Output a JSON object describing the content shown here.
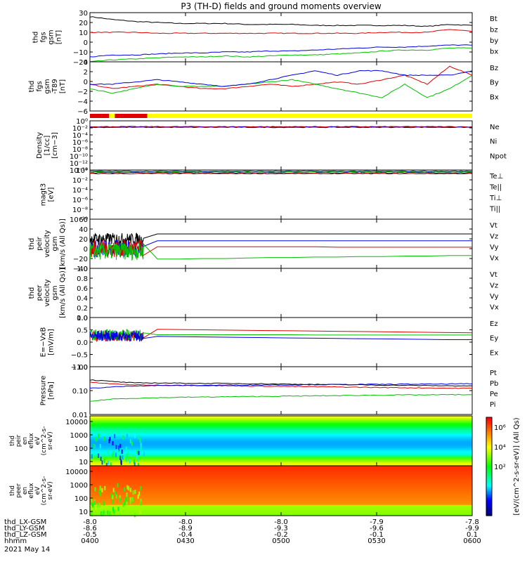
{
  "title": "P3 (TH-D) fields and ground moments overview",
  "chart_data": {
    "type": "line",
    "x_ticks": [
      "0400",
      "0430",
      "0500",
      "0530",
      "0600"
    ],
    "x_range": [
      "0400",
      "0600"
    ],
    "date_label": "2021 May 14",
    "ephemeris": [
      {
        "label": "thd_LX-GSM",
        "values": [
          "-8.0",
          "-8.0",
          "-8.0",
          "-7.9",
          "-7.8"
        ]
      },
      {
        "label": "thd_LY-GSM",
        "values": [
          "-8.6",
          "-8.9",
          "-9.3",
          "-9.6",
          "-9.9"
        ]
      },
      {
        "label": "thd_LZ-GSM",
        "values": [
          "-0.5",
          "-0.4",
          "-0.2",
          "-0.1",
          "0.1"
        ]
      },
      {
        "label": "hhmm",
        "values": [
          "0400",
          "0430",
          "0500",
          "0530",
          "0600"
        ]
      }
    ],
    "panels": [
      {
        "id": "fgs",
        "ylabel": [
          "thd",
          "fgs",
          "gsm",
          "[nT]"
        ],
        "yrange": [
          -20,
          30
        ],
        "yticks": [
          "30",
          "20",
          "10",
          "0",
          "−10",
          "−20"
        ],
        "legend": [
          {
            "name": "Bt",
            "color": "#000000"
          },
          {
            "name": "bz",
            "color": "#e00000"
          },
          {
            "name": "by",
            "color": "#00c000"
          },
          {
            "name": "bx",
            "color": "#0000e0"
          }
        ],
        "series": [
          {
            "name": "Bt",
            "color": "#000000",
            "y": [
              26,
              23,
              21,
              20,
              19,
              19,
              19,
              18,
              18,
              18,
              17,
              17,
              17,
              17,
              17,
              16,
              18,
              17
            ]
          },
          {
            "name": "bz",
            "color": "#e00000",
            "y": [
              10,
              10,
              10,
              9,
              9,
              9,
              9,
              9,
              9,
              9,
              9,
              9,
              9,
              10,
              10,
              10,
              13,
              11
            ]
          },
          {
            "name": "by",
            "color": "#00c000",
            "y": [
              -20,
              -18,
              -17,
              -16,
              -15,
              -15,
              -14,
              -15,
              -14,
              -13,
              -13,
              -12,
              -11,
              -9,
              -8,
              -8,
              -6,
              -6
            ]
          },
          {
            "name": "bx",
            "color": "#0000e0",
            "y": [
              -15,
              -13,
              -13,
              -12,
              -11,
              -11,
              -10,
              -10,
              -9,
              -9,
              -8,
              -7,
              -6,
              -5,
              -5,
              -4,
              -3,
              -3
            ]
          }
        ]
      },
      {
        "id": "fgs_gse",
        "ylabel": [
          "thd",
          "fgs",
          "gsm",
          "-T89",
          "[nT]"
        ],
        "yrange": [
          -7,
          4
        ],
        "yticks": [
          "4",
          "2",
          "0",
          "−2",
          "−4",
          "−6"
        ],
        "legend": [
          {
            "name": "Bz",
            "color": "#e00000"
          },
          {
            "name": "By",
            "color": "#00c000"
          },
          {
            "name": "Bx",
            "color": "#0000e0"
          }
        ],
        "series": [
          {
            "name": "Bz",
            "color": "#e00000",
            "y": [
              -1,
              -2,
              -1.5,
              -1,
              -1.5,
              -2,
              -2,
              -1.5,
              -1,
              -1.5,
              -1,
              -0.5,
              -1,
              0,
              1,
              -1,
              3,
              1
            ]
          },
          {
            "name": "By",
            "color": "#00c000",
            "y": [
              -2,
              -3,
              -2,
              -1,
              -1.5,
              -1.5,
              -1.5,
              -1,
              -0.5,
              0,
              -1,
              -2,
              -3,
              -4,
              -1,
              -4,
              -2,
              1
            ]
          },
          {
            "name": "Bx",
            "color": "#0000e0",
            "y": [
              -1,
              -1,
              -0.5,
              0,
              -0.5,
              -1,
              -1.5,
              -1,
              0,
              1,
              2,
              1,
              2,
              2,
              1,
              1,
              1,
              2
            ]
          }
        ]
      },
      {
        "id": "density",
        "ylabel": [
          "Density",
          "[1/cc]",
          "[cm−3]"
        ],
        "yrange": [
          -14,
          2
        ],
        "yticks": [
          "10⁰",
          "10⁻²",
          "10⁻⁴",
          "10⁻⁶",
          "10⁻⁸",
          "10⁻¹⁰",
          "10⁻¹²",
          "10⁻¹⁴"
        ],
        "legend": [
          {
            "name": "Ne",
            "color": "#e00000"
          },
          {
            "name": "Ni",
            "color": "#000000"
          },
          {
            "name": "Npot",
            "color": "#0000e0"
          }
        ],
        "series": [
          {
            "name": "Ni",
            "color": "#000000",
            "y": [
              0,
              0,
              0,
              0,
              0,
              0,
              0,
              0,
              0,
              0,
              0,
              0,
              0,
              0,
              0,
              0,
              0,
              0
            ]
          },
          {
            "name": "Ne",
            "color": "#e00000",
            "y": [
              0.1,
              0.1,
              0.1,
              0.1,
              0.1,
              0.1,
              0.1,
              0.1,
              0.1,
              0.1,
              0.1,
              0.1,
              0.1,
              0.1,
              0.1,
              0.1,
              0.1,
              0.1
            ]
          },
          {
            "name": "Npot",
            "color": "#0000e0",
            "y": [
              -0.1,
              -0.1,
              -0.1,
              -0.1,
              -0.1,
              -0.1,
              -0.1,
              -0.1,
              -0.1,
              -0.1,
              -0.1,
              -0.1,
              -0.1,
              -0.1,
              -0.1,
              -0.1,
              -0.1,
              -0.1
            ]
          }
        ]
      },
      {
        "id": "temp",
        "ylabel": [
          "magt3",
          "[eV]"
        ],
        "yrange": [
          -10,
          2
        ],
        "yticks": [
          "10⁰",
          "10⁻²",
          "10⁻⁴",
          "10⁻⁶",
          "10⁻⁸",
          "10⁻¹⁰"
        ],
        "legend": [
          {
            "name": "Te⊥",
            "color": "#e00000"
          },
          {
            "name": "Te||",
            "color": "#000000"
          },
          {
            "name": "Ti⊥",
            "color": "#0000e0"
          },
          {
            "name": "Ti||",
            "color": "#00c000"
          }
        ],
        "series": [
          {
            "name": "Te||",
            "color": "#000000",
            "y": [
              1.3,
              1.3,
              1.3,
              1.3,
              1.3,
              1.3,
              1.3,
              1.3,
              1.3,
              1.3,
              1.3,
              1.3,
              1.3,
              1.3,
              1.3,
              1.3,
              1.3,
              1.3
            ]
          },
          {
            "name": "Ti||",
            "color": "#00c000",
            "y": [
              1.5,
              1.5,
              1.5,
              1.5,
              1.5,
              1.5,
              1.5,
              1.5,
              1.5,
              1.5,
              1.5,
              1.5,
              1.5,
              1.5,
              1.5,
              1.5,
              1.5,
              1.5
            ]
          },
          {
            "name": "Te⊥",
            "color": "#e00000",
            "y": [
              1.1,
              1.1,
              1.1,
              1.1,
              1.1,
              1.1,
              1.1,
              1.1,
              1.1,
              1.1,
              1.1,
              1.1,
              1.1,
              1.1,
              1.1,
              1.1,
              1.1,
              1.1
            ]
          },
          {
            "name": "Ti⊥",
            "color": "#0000e0",
            "y": [
              1.7,
              1.7,
              1.7,
              1.7,
              1.7,
              1.7,
              1.7,
              1.7,
              1.7,
              1.7,
              1.7,
              1.7,
              1.7,
              1.7,
              1.7,
              1.7,
              1.7,
              1.7
            ]
          }
        ]
      },
      {
        "id": "peir_vel",
        "ylabel": [
          "thd",
          "peir",
          "velocity",
          "gsm",
          "[km/s (All Qs)]"
        ],
        "yrange": [
          -40,
          60
        ],
        "yticks": [
          "60",
          "40",
          "20",
          "0",
          "−20",
          "−40"
        ],
        "legend": [
          {
            "name": "Vt",
            "color": "#000000"
          },
          {
            "name": "Vz",
            "color": "#e00000"
          },
          {
            "name": "Vy",
            "color": "#00c000"
          },
          {
            "name": "Vx",
            "color": "#0000e0"
          }
        ],
        "noisy_until": 0.14,
        "series": [
          {
            "name": "Vt",
            "color": "#000000",
            "y": [
              30,
              30,
              30,
              30,
              30,
              30,
              30,
              30,
              30,
              30,
              30,
              30,
              30,
              30,
              30,
              30,
              30,
              30
            ],
            "noise": [
              20,
              12
            ]
          },
          {
            "name": "Vx",
            "color": "#0000e0",
            "y": [
              16,
              16,
              16,
              16,
              16,
              16,
              16,
              16,
              16,
              16,
              16,
              16,
              16,
              16,
              16,
              16,
              16,
              16
            ],
            "noise": [
              0,
              18
            ]
          },
          {
            "name": "Vz",
            "color": "#e00000",
            "y": [
              4,
              4,
              4,
              4,
              4,
              4,
              4,
              4,
              4,
              4,
              4,
              3,
              3,
              3,
              3,
              3,
              3,
              3
            ],
            "noise": [
              0,
              18
            ]
          },
          {
            "name": "Vy",
            "color": "#00c000",
            "y": [
              -23,
              -22,
              -22,
              -21,
              -21,
              -20,
              -20,
              -19,
              -18,
              -18,
              -17,
              -17,
              -16,
              -16,
              -15,
              -15,
              -14,
              -14
            ],
            "noise": [
              -5,
              18
            ]
          }
        ]
      },
      {
        "id": "peer_vel",
        "ylabel": [
          "thd",
          "peer",
          "velocity",
          "gsm",
          "[km/s (All Qs)]"
        ],
        "yrange": [
          0,
          1
        ],
        "yticks": [
          "1.0",
          "0.8",
          "0.6",
          "0.4",
          "0.2",
          "0.0"
        ],
        "legend": [
          {
            "name": "Vt",
            "color": "#000000"
          },
          {
            "name": "Vz",
            "color": "#e00000"
          },
          {
            "name": "Vy",
            "color": "#00c000"
          },
          {
            "name": "Vx",
            "color": "#0000e0"
          }
        ],
        "series": []
      },
      {
        "id": "efield",
        "ylabel": [
          "E=−VxB",
          "[mV/m]"
        ],
        "yrange": [
          -1,
          1
        ],
        "yticks": [
          "1.0",
          "0.5",
          "0.0",
          "−0.5",
          "−1.0"
        ],
        "legend": [
          {
            "name": "Ez",
            "color": "#e00000"
          },
          {
            "name": "Ey",
            "color": "#00c000"
          },
          {
            "name": "Ex",
            "color": "#0000e0"
          }
        ],
        "noisy_until": 0.14,
        "series": [
          {
            "name": "Ez",
            "color": "#e00000",
            "y": [
              0.55,
              0.54,
              0.53,
              0.52,
              0.51,
              0.5,
              0.49,
              0.48,
              0.47,
              0.46,
              0.45,
              0.44,
              0.43,
              0.42,
              0.41,
              0.4,
              0.39,
              0.38
            ],
            "noise": [
              0.25,
              0.22
            ]
          },
          {
            "name": "Ey",
            "color": "#00c000",
            "y": [
              0.3,
              0.3,
              0.3,
              0.3,
              0.3,
              0.3,
              0.3,
              0.3,
              0.3,
              0.3,
              0.29,
              0.29,
              0.29,
              0.29,
              0.29,
              0.29,
              0.29,
              0.29
            ],
            "noise": [
              0.3,
              0.22
            ]
          },
          {
            "name": "Ex",
            "color": "#0000e0",
            "y": [
              0.26,
              0.25,
              0.24,
              0.23,
              0.22,
              0.21,
              0.2,
              0.19,
              0.18,
              0.17,
              0.16,
              0.15,
              0.14,
              0.13,
              0.12,
              0.11,
              0.1,
              0.1
            ],
            "noise": [
              0.25,
              0.22
            ]
          }
        ]
      },
      {
        "id": "pressure",
        "ylabel": [
          "Pressure",
          "[nPa]"
        ],
        "yrange": [
          -2,
          0
        ],
        "yticks": [
          "1.00",
          "0.10",
          "0.01"
        ],
        "yticks_pos": [
          0,
          -1,
          -2
        ],
        "legend": [
          {
            "name": "Pt",
            "color": "#000000"
          },
          {
            "name": "Pb",
            "color": "#e00000"
          },
          {
            "name": "Pe",
            "color": "#00c000"
          },
          {
            "name": "Pi",
            "color": "#0000e0"
          }
        ],
        "series": [
          {
            "name": "Pt",
            "color": "#000000",
            "y": [
              -0.55,
              -0.62,
              -0.68,
              -0.68,
              -0.69,
              -0.7,
              -0.7,
              -0.71,
              -0.72,
              -0.73,
              -0.74,
              -0.75,
              -0.76,
              -0.77,
              -0.78,
              -0.79,
              -0.8,
              -0.8
            ]
          },
          {
            "name": "Pb",
            "color": "#e00000",
            "y": [
              -0.65,
              -0.72,
              -0.76,
              -0.77,
              -0.78,
              -0.79,
              -0.8,
              -0.81,
              -0.82,
              -0.83,
              -0.84,
              -0.85,
              -0.86,
              -0.87,
              -0.88,
              -0.89,
              -0.9,
              -0.9
            ]
          },
          {
            "name": "Pi",
            "color": "#0000e0",
            "y": [
              -0.9,
              -0.85,
              -0.8,
              -0.79,
              -0.78,
              -0.78,
              -0.77,
              -0.77,
              -0.76,
              -0.76,
              -0.75,
              -0.75,
              -0.74,
              -0.74,
              -0.73,
              -0.73,
              -0.72,
              -0.72
            ]
          },
          {
            "name": "Pe",
            "color": "#00c000",
            "y": [
              -1.45,
              -1.35,
              -1.32,
              -1.3,
              -1.28,
              -1.27,
              -1.26,
              -1.25,
              -1.24,
              -1.23,
              -1.22,
              -1.21,
              -1.2,
              -1.19,
              -1.18,
              -1.18,
              -1.17,
              -1.17
            ]
          }
        ]
      }
    ],
    "spectrograms": [
      {
        "id": "peir",
        "ylabel": [
          "thd",
          "peir",
          "en",
          "eflux",
          "eV",
          "(cm^2-s-",
          "sr-eV)"
        ],
        "yticks": [
          "10000",
          "1000",
          "100",
          "10"
        ]
      },
      {
        "id": "peer",
        "ylabel": [
          "thd",
          "peer",
          "en",
          "eflux",
          "eV",
          "(cm^2-s-",
          "sr-eV)"
        ],
        "yticks": [
          "10000",
          "1000",
          "100",
          "10"
        ]
      }
    ],
    "colorbar": {
      "ticks": [
        "10⁶",
        "10⁴",
        "10²"
      ],
      "label": "[eV/(cm^2-s-sr-eV)] (All Qs)"
    },
    "mode_bar": {
      "segments": [
        {
          "color": "#e00000",
          "from": 0,
          "to": 0.05
        },
        {
          "color": "#ffff00",
          "from": 0.05,
          "to": 0.065
        },
        {
          "color": "#e00000",
          "from": 0.065,
          "to": 0.15
        },
        {
          "color": "#ffff00",
          "from": 0.15,
          "to": 1
        }
      ]
    }
  }
}
